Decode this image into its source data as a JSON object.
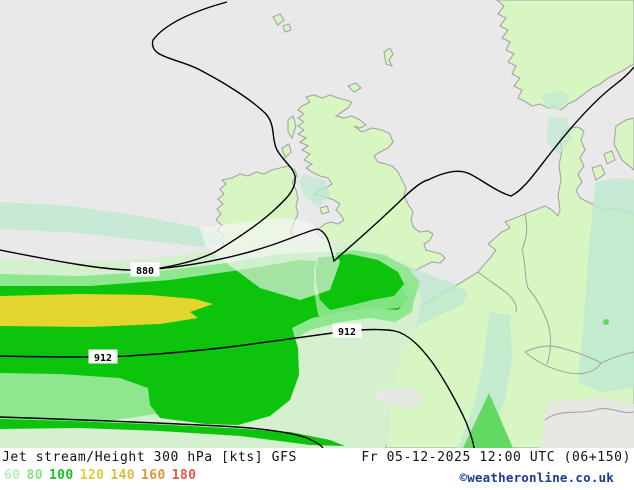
{
  "map": {
    "contour_labels": [
      {
        "text": "880"
      },
      {
        "text": "912"
      },
      {
        "text": "912"
      }
    ]
  },
  "colors": {
    "sea": "#e9e9e9",
    "land": "#d8f6c2",
    "coastline": "#a4a4a4",
    "contour": "#000000",
    "jet_60_pale": "#d4f0cf",
    "jet_60_mint": "#bfe9d0",
    "jet_80": "#8ee68e",
    "jet_100": "#0cc40c",
    "jet_120": "#e3d52e",
    "jet_80_land": "#63d963",
    "white_patch": "#f6f6f4",
    "gray_patch": "#e7e7e6",
    "credit_blue": "#1a3a99"
  },
  "footer": {
    "title": "Jet stream/Height 300 hPa [kts] GFS",
    "timestamp": "Fr 05-12-2025 12:00 UTC (06+150)",
    "credit": "©weatheronline.co.uk",
    "legend_kts": [
      {
        "value": "60",
        "color": "#b9edb9"
      },
      {
        "value": "80",
        "color": "#8ce28c"
      },
      {
        "value": "100",
        "color": "#1fbf1f"
      },
      {
        "value": "120",
        "color": "#ddd03b"
      },
      {
        "value": "140",
        "color": "#dcba45"
      },
      {
        "value": "160",
        "color": "#d9953e"
      },
      {
        "value": "180",
        "color": "#e25a50"
      }
    ]
  }
}
